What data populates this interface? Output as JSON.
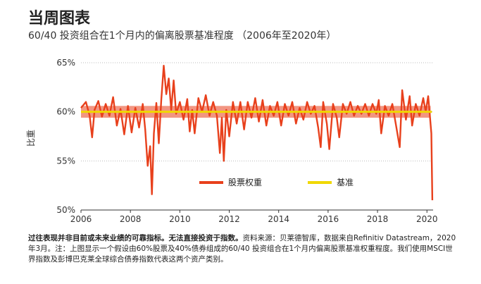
{
  "title": "当周图表",
  "subtitle": "60/40 投资组合在1个月内的偏离股票基准程度 （2006年至2020年）",
  "footnote": {
    "bold": "过往表现并非目前或未来业绩的可靠指标。无法直接投资于指数。",
    "text": "资料来源：贝莱德智库，数据来自Refinitiv Datastream，2020年3月。注：上图显示一个假设由60%股票及40%债券组成的60/40 投资组合在1个月内偏离股票基准权重程度。我们使用MSCI世界指数及彭博巴克莱全球综合债券指数代表这两个资产类别。"
  },
  "chart_data": {
    "type": "line",
    "ylabel": "比重",
    "xlim": [
      2006,
      2020.25
    ],
    "ylim": [
      50,
      65
    ],
    "x_ticks": [
      2006,
      2008,
      2010,
      2012,
      2014,
      2016,
      2018,
      2020
    ],
    "y_ticks": [
      50,
      55,
      60,
      65
    ],
    "y_tick_labels": [
      "50%",
      "55%",
      "60%",
      "65%"
    ],
    "legend": {
      "position": "bottom-right"
    },
    "series": [
      {
        "name": "股票权重",
        "color": "#e8401c",
        "points": [
          [
            2006.0,
            60.4
          ],
          [
            2006.2,
            61.0
          ],
          [
            2006.35,
            59.6
          ],
          [
            2006.45,
            57.4
          ],
          [
            2006.55,
            60.2
          ],
          [
            2006.7,
            61.1
          ],
          [
            2006.85,
            59.5
          ],
          [
            2007.0,
            60.8
          ],
          [
            2007.15,
            59.6
          ],
          [
            2007.3,
            61.5
          ],
          [
            2007.45,
            58.6
          ],
          [
            2007.6,
            60.3
          ],
          [
            2007.75,
            57.7
          ],
          [
            2007.9,
            60.6
          ],
          [
            2008.05,
            57.9
          ],
          [
            2008.2,
            60.4
          ],
          [
            2008.35,
            58.4
          ],
          [
            2008.5,
            60.8
          ],
          [
            2008.6,
            58.2
          ],
          [
            2008.7,
            54.5
          ],
          [
            2008.8,
            56.5
          ],
          [
            2008.87,
            51.6
          ],
          [
            2008.95,
            57.8
          ],
          [
            2009.05,
            60.9
          ],
          [
            2009.15,
            56.8
          ],
          [
            2009.25,
            61.2
          ],
          [
            2009.35,
            64.7
          ],
          [
            2009.45,
            61.8
          ],
          [
            2009.55,
            63.4
          ],
          [
            2009.65,
            60.2
          ],
          [
            2009.75,
            63.2
          ],
          [
            2009.85,
            59.8
          ],
          [
            2010.0,
            61.0
          ],
          [
            2010.15,
            59.2
          ],
          [
            2010.3,
            61.3
          ],
          [
            2010.4,
            58.0
          ],
          [
            2010.5,
            60.2
          ],
          [
            2010.6,
            57.8
          ],
          [
            2010.75,
            61.4
          ],
          [
            2010.9,
            60.0
          ],
          [
            2011.05,
            61.7
          ],
          [
            2011.2,
            59.6
          ],
          [
            2011.35,
            61.0
          ],
          [
            2011.5,
            59.6
          ],
          [
            2011.62,
            55.8
          ],
          [
            2011.7,
            59.4
          ],
          [
            2011.78,
            55.0
          ],
          [
            2011.88,
            60.2
          ],
          [
            2012.0,
            57.5
          ],
          [
            2012.15,
            61.0
          ],
          [
            2012.3,
            58.8
          ],
          [
            2012.45,
            61.0
          ],
          [
            2012.6,
            58.2
          ],
          [
            2012.75,
            61.0
          ],
          [
            2012.9,
            59.4
          ],
          [
            2013.05,
            61.4
          ],
          [
            2013.2,
            59.0
          ],
          [
            2013.35,
            61.2
          ],
          [
            2013.5,
            58.6
          ],
          [
            2013.65,
            60.6
          ],
          [
            2013.8,
            59.6
          ],
          [
            2013.95,
            61.0
          ],
          [
            2014.1,
            58.6
          ],
          [
            2014.25,
            60.8
          ],
          [
            2014.4,
            59.6
          ],
          [
            2014.55,
            61.0
          ],
          [
            2014.7,
            58.8
          ],
          [
            2014.85,
            60.4
          ],
          [
            2015.0,
            59.2
          ],
          [
            2015.15,
            61.0
          ],
          [
            2015.3,
            59.8
          ],
          [
            2015.45,
            60.6
          ],
          [
            2015.6,
            58.4
          ],
          [
            2015.7,
            56.4
          ],
          [
            2015.8,
            61.0
          ],
          [
            2015.95,
            58.8
          ],
          [
            2016.05,
            56.2
          ],
          [
            2016.2,
            60.8
          ],
          [
            2016.35,
            59.4
          ],
          [
            2016.45,
            57.4
          ],
          [
            2016.6,
            60.8
          ],
          [
            2016.75,
            59.8
          ],
          [
            2016.9,
            61.0
          ],
          [
            2017.05,
            59.6
          ],
          [
            2017.2,
            60.6
          ],
          [
            2017.35,
            59.8
          ],
          [
            2017.5,
            60.8
          ],
          [
            2017.65,
            59.6
          ],
          [
            2017.8,
            60.8
          ],
          [
            2017.95,
            59.8
          ],
          [
            2018.05,
            61.2
          ],
          [
            2018.15,
            57.8
          ],
          [
            2018.3,
            60.6
          ],
          [
            2018.45,
            59.6
          ],
          [
            2018.6,
            60.8
          ],
          [
            2018.75,
            58.6
          ],
          [
            2018.9,
            56.4
          ],
          [
            2019.0,
            62.2
          ],
          [
            2019.15,
            59.2
          ],
          [
            2019.3,
            61.6
          ],
          [
            2019.4,
            58.6
          ],
          [
            2019.55,
            60.8
          ],
          [
            2019.7,
            59.6
          ],
          [
            2019.85,
            61.4
          ],
          [
            2019.95,
            60.0
          ],
          [
            2020.05,
            61.6
          ],
          [
            2020.12,
            59.6
          ],
          [
            2020.18,
            57.8
          ],
          [
            2020.22,
            51.0
          ]
        ]
      },
      {
        "name": "基准",
        "color": "#f0d800",
        "points": [
          [
            2006.0,
            60
          ],
          [
            2020.2,
            60
          ]
        ]
      }
    ]
  }
}
